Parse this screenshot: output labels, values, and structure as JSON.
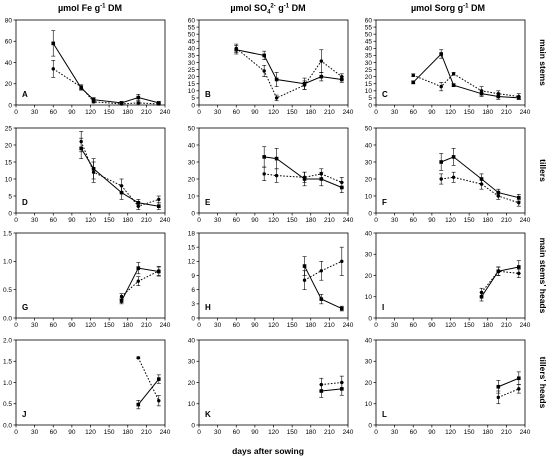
{
  "chart_data": {
    "type": "line",
    "xlabel": "days after sowing",
    "col_titles": [
      {
        "main": "µmol Fe  g",
        "exp": "-1",
        "tail": " DM"
      },
      {
        "main": "µmol SO",
        "sub": "4",
        "exp": "2-",
        "mid": "  g",
        "exp2": "-1",
        "tail": " DM"
      },
      {
        "main": "µmol Sorg  g",
        "exp": "-1",
        "tail": " DM"
      }
    ],
    "row_titles": [
      "main stems",
      "tillers",
      "main stems' heads",
      "tillers' heads"
    ],
    "xticks": [
      0,
      30,
      60,
      90,
      120,
      150,
      180,
      210,
      240
    ],
    "panels": [
      {
        "label": "A",
        "xlim": [
          0,
          240
        ],
        "ylim": [
          0,
          80
        ],
        "yticks": [
          0,
          20,
          40,
          60,
          80
        ],
        "series": [
          {
            "style": "solid",
            "marker": "square",
            "x": [
              60,
              105,
              125,
              170,
              197,
              230
            ],
            "y": [
              58,
              16,
              5,
              2,
              7,
              2
            ],
            "err": [
              12,
              2,
              2,
              1,
              3,
              1
            ]
          },
          {
            "style": "dotted",
            "marker": "circle",
            "x": [
              60,
              105,
              125,
              170,
              197,
              230
            ],
            "y": [
              34,
              17,
              3,
              1,
              2,
              1
            ],
            "err": [
              8,
              2,
              1,
              1,
              1,
              1
            ]
          }
        ]
      },
      {
        "label": "B",
        "xlim": [
          0,
          240
        ],
        "ylim": [
          0,
          60
        ],
        "yticks": [
          0,
          5,
          10,
          15,
          20,
          25,
          30,
          35,
          40,
          45,
          50,
          55,
          60
        ],
        "series": [
          {
            "style": "solid",
            "marker": "square",
            "x": [
              60,
              105,
              125,
              170,
              197,
              230
            ],
            "y": [
              39,
              35,
              18,
              15,
              20,
              18
            ],
            "err": [
              3,
              3,
              5,
              4,
              3,
              2
            ]
          },
          {
            "style": "dotted",
            "marker": "circle",
            "x": [
              60,
              105,
              125,
              170,
              197,
              230
            ],
            "y": [
              40,
              24,
              5,
              14,
              31,
              20
            ],
            "err": [
              3,
              4,
              2,
              3,
              8,
              2
            ]
          }
        ]
      },
      {
        "label": "C",
        "xlim": [
          0,
          240
        ],
        "ylim": [
          0,
          60
        ],
        "yticks": [
          0,
          5,
          10,
          15,
          20,
          25,
          30,
          35,
          40,
          45,
          50,
          55,
          60
        ],
        "series": [
          {
            "style": "solid",
            "marker": "square",
            "x": [
              60,
              105,
              125,
              170,
              197,
              230
            ],
            "y": [
              16,
              36,
              14,
              8,
              6,
              5
            ],
            "err": [
              1,
              3,
              1,
              2,
              2,
              1
            ]
          },
          {
            "style": "dotted",
            "marker": "circle",
            "x": [
              60,
              105,
              125,
              170,
              197,
              230
            ],
            "y": [
              21,
              13,
              22,
              10,
              8,
              6
            ],
            "err": [
              1,
              3,
              1,
              3,
              2,
              2
            ]
          }
        ]
      },
      {
        "label": "D",
        "xlim": [
          0,
          240
        ],
        "ylim": [
          0,
          25
        ],
        "yticks": [
          0,
          5,
          10,
          15,
          20,
          25
        ],
        "series": [
          {
            "style": "solid",
            "marker": "square",
            "x": [
              105,
              125,
              170,
              197,
              230
            ],
            "y": [
              19,
              13,
              6,
              3,
              2
            ],
            "err": [
              3,
              3,
              2,
              1,
              1
            ]
          },
          {
            "style": "dotted",
            "marker": "circle",
            "x": [
              105,
              125,
              170,
              197,
              230
            ],
            "y": [
              21,
              12,
              8,
              2,
              4
            ],
            "err": [
              3,
              3,
              2,
              1,
              1
            ]
          }
        ]
      },
      {
        "label": "E",
        "xlim": [
          0,
          240
        ],
        "ylim": [
          0,
          50
        ],
        "yticks": [
          0,
          10,
          20,
          30,
          40,
          50
        ],
        "series": [
          {
            "style": "solid",
            "marker": "square",
            "x": [
              105,
              125,
              170,
              197,
              230
            ],
            "y": [
              33,
              32,
              20,
              20,
              15
            ],
            "err": [
              6,
              6,
              4,
              4,
              3
            ]
          },
          {
            "style": "dotted",
            "marker": "circle",
            "x": [
              105,
              125,
              170,
              197,
              230
            ],
            "y": [
              23,
              22,
              21,
              23,
              18
            ],
            "err": [
              4,
              4,
              3,
              3,
              3
            ]
          }
        ]
      },
      {
        "label": "F",
        "xlim": [
          0,
          240
        ],
        "ylim": [
          0,
          50
        ],
        "yticks": [
          0,
          10,
          20,
          30,
          40,
          50
        ],
        "series": [
          {
            "style": "solid",
            "marker": "square",
            "x": [
              105,
              125,
              170,
              197,
              230
            ],
            "y": [
              30,
              33,
              20,
              12,
              9
            ],
            "err": [
              5,
              5,
              3,
              2,
              2
            ]
          },
          {
            "style": "dotted",
            "marker": "circle",
            "x": [
              105,
              125,
              170,
              197,
              230
            ],
            "y": [
              20,
              21,
              17,
              10,
              6
            ],
            "err": [
              3,
              3,
              3,
              2,
              2
            ]
          }
        ]
      },
      {
        "label": "G",
        "xlim": [
          0,
          240
        ],
        "ylim": [
          0,
          1.5
        ],
        "yticks": [
          0,
          0.5,
          1,
          1.5
        ],
        "ytick_labels": [
          "0.0",
          "0.5",
          "1.0",
          "1.5"
        ],
        "series": [
          {
            "style": "solid",
            "marker": "square",
            "x": [
              170,
              197,
              230
            ],
            "y": [
              0.3,
              0.88,
              0.82
            ],
            "err": [
              0.05,
              0.1,
              0.08
            ]
          },
          {
            "style": "dotted",
            "marker": "circle",
            "x": [
              170,
              197,
              230
            ],
            "y": [
              0.38,
              0.65,
              0.83
            ],
            "err": [
              0.05,
              0.08,
              0.08
            ]
          }
        ]
      },
      {
        "label": "H",
        "xlim": [
          0,
          240
        ],
        "ylim": [
          0,
          18
        ],
        "yticks": [
          0,
          3,
          6,
          9,
          12,
          15,
          18
        ],
        "series": [
          {
            "style": "solid",
            "marker": "square",
            "x": [
              170,
              197,
              230
            ],
            "y": [
              11,
              4,
              2
            ],
            "err": [
              2,
              1,
              0.5
            ]
          },
          {
            "style": "dotted",
            "marker": "circle",
            "x": [
              170,
              197,
              230
            ],
            "y": [
              8,
              10,
              12
            ],
            "err": [
              2,
              2,
              3
            ]
          }
        ]
      },
      {
        "label": "I",
        "xlim": [
          0,
          240
        ],
        "ylim": [
          0,
          40
        ],
        "yticks": [
          0,
          10,
          20,
          30,
          40
        ],
        "series": [
          {
            "style": "solid",
            "marker": "square",
            "x": [
              170,
              197,
              230
            ],
            "y": [
              10,
              22,
              24
            ],
            "err": [
              2,
              2,
              3
            ]
          },
          {
            "style": "dotted",
            "marker": "circle",
            "x": [
              170,
              197,
              230
            ],
            "y": [
              12,
              22,
              21
            ],
            "err": [
              2,
              2,
              2
            ]
          }
        ]
      },
      {
        "label": "J",
        "xlim": [
          0,
          240
        ],
        "ylim": [
          0,
          2
        ],
        "yticks": [
          0,
          0.5,
          1,
          1.5,
          2
        ],
        "ytick_labels": [
          "0.0",
          "0.5",
          "1.0",
          "1.5",
          "2.0"
        ],
        "series": [
          {
            "style": "solid",
            "marker": "square",
            "x": [
              197,
              230
            ],
            "y": [
              0.48,
              1.08
            ],
            "err": [
              0.1,
              0.1
            ]
          },
          {
            "style": "dotted",
            "marker": "circle",
            "x": [
              197,
              230
            ],
            "y": [
              1.58,
              0.57
            ],
            "err": [
              0.02,
              0.12
            ]
          }
        ]
      },
      {
        "label": "K",
        "xlim": [
          0,
          240
        ],
        "ylim": [
          0,
          40
        ],
        "yticks": [
          0,
          10,
          20,
          30,
          40
        ],
        "series": [
          {
            "style": "solid",
            "marker": "square",
            "x": [
              197,
              230
            ],
            "y": [
              16,
              17
            ],
            "err": [
              3,
              3
            ]
          },
          {
            "style": "dotted",
            "marker": "circle",
            "x": [
              197,
              230
            ],
            "y": [
              19,
              20
            ],
            "err": [
              3,
              3
            ]
          }
        ]
      },
      {
        "label": "L",
        "xlim": [
          0,
          240
        ],
        "ylim": [
          0,
          40
        ],
        "yticks": [
          0,
          10,
          20,
          30,
          40
        ],
        "series": [
          {
            "style": "solid",
            "marker": "square",
            "x": [
              197,
              230
            ],
            "y": [
              18,
              22
            ],
            "err": [
              3,
              3
            ]
          },
          {
            "style": "dotted",
            "marker": "circle",
            "x": [
              197,
              230
            ],
            "y": [
              13,
              17
            ],
            "err": [
              3,
              2
            ]
          }
        ]
      }
    ]
  }
}
